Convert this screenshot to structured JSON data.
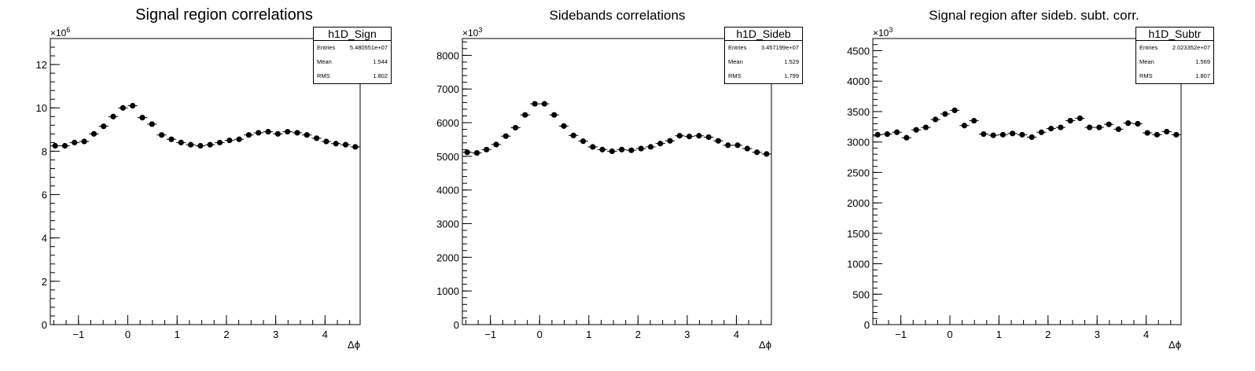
{
  "chart_data": [
    {
      "type": "scatter",
      "title": "Signal region correlations",
      "xlabel": "Δϕ",
      "ylabel": "",
      "xlim": [
        -1.571,
        4.712
      ],
      "ylim": [
        0,
        13.2
      ],
      "y_multiplier_label": "×10",
      "y_multiplier_exp": "6",
      "xticks": [
        "-1",
        "0",
        "1",
        "2",
        "3",
        "4"
      ],
      "yticks": [
        "0",
        "2",
        "4",
        "6",
        "8",
        "10",
        "12"
      ],
      "grid": false,
      "legend": "none",
      "stats": {
        "name": "h1D_Sign",
        "rows": [
          {
            "label": "Entries",
            "value": "5.480551e+07"
          },
          {
            "label": "Mean",
            "value": "1.544"
          },
          {
            "label": "RMS",
            "value": "1.802"
          }
        ]
      },
      "series": [
        {
          "x": [
            -1.473,
            -1.276,
            -1.08,
            -0.884,
            -0.687,
            -0.491,
            -0.295,
            -0.098,
            0.098,
            0.295,
            0.491,
            0.687,
            0.884,
            1.08,
            1.276,
            1.473,
            1.669,
            1.865,
            2.062,
            2.258,
            2.454,
            2.651,
            2.847,
            3.043,
            3.24,
            3.436,
            3.632,
            3.829,
            4.025,
            4.221,
            4.418,
            4.614
          ],
          "y": [
            8.25,
            8.25,
            8.4,
            8.45,
            8.8,
            9.15,
            9.6,
            10.0,
            10.1,
            9.55,
            9.25,
            8.75,
            8.55,
            8.4,
            8.3,
            8.25,
            8.3,
            8.4,
            8.5,
            8.55,
            8.75,
            8.85,
            8.9,
            8.8,
            8.9,
            8.85,
            8.75,
            8.6,
            8.45,
            8.35,
            8.3,
            8.2
          ],
          "yerr": [
            0.003,
            0.003,
            0.003,
            0.003,
            0.003,
            0.003,
            0.003,
            0.003,
            0.003,
            0.003,
            0.003,
            0.003,
            0.003,
            0.003,
            0.003,
            0.003,
            0.003,
            0.003,
            0.003,
            0.003,
            0.003,
            0.003,
            0.003,
            0.003,
            0.003,
            0.003,
            0.003,
            0.003,
            0.003,
            0.003,
            0.003,
            0.003
          ]
        }
      ]
    },
    {
      "type": "scatter",
      "title": "Sidebands correlations",
      "xlabel": "Δϕ",
      "ylabel": "",
      "xlim": [
        -1.571,
        4.712
      ],
      "ylim": [
        0,
        8500
      ],
      "y_multiplier_label": "×10",
      "y_multiplier_exp": "3",
      "xticks": [
        "-1",
        "0",
        "1",
        "2",
        "3",
        "4"
      ],
      "yticks": [
        "0",
        "1000",
        "2000",
        "3000",
        "4000",
        "5000",
        "6000",
        "7000",
        "8000"
      ],
      "grid": false,
      "legend": "none",
      "stats": {
        "name": "h1D_Sideb",
        "rows": [
          {
            "label": "Entries",
            "value": "3.457199e+07"
          },
          {
            "label": "Mean",
            "value": "1.529"
          },
          {
            "label": "RMS",
            "value": "1.799"
          }
        ]
      },
      "series": [
        {
          "x": [
            -1.473,
            -1.276,
            -1.08,
            -0.884,
            -0.687,
            -0.491,
            -0.295,
            -0.098,
            0.098,
            0.295,
            0.491,
            0.687,
            0.884,
            1.08,
            1.276,
            1.473,
            1.669,
            1.865,
            2.062,
            2.258,
            2.454,
            2.651,
            2.847,
            3.043,
            3.24,
            3.436,
            3.632,
            3.829,
            4.025,
            4.221,
            4.418,
            4.614
          ],
          "y": [
            5120,
            5100,
            5200,
            5350,
            5600,
            5850,
            6230,
            6560,
            6560,
            6230,
            5900,
            5620,
            5450,
            5280,
            5200,
            5150,
            5200,
            5180,
            5230,
            5280,
            5380,
            5460,
            5610,
            5590,
            5610,
            5570,
            5460,
            5330,
            5330,
            5230,
            5120,
            5070
          ],
          "yerr": [
            2,
            2,
            2,
            2,
            2,
            2,
            2,
            2,
            2,
            2,
            2,
            2,
            2,
            2,
            2,
            2,
            2,
            2,
            2,
            2,
            2,
            2,
            2,
            2,
            2,
            2,
            2,
            2,
            2,
            2,
            2,
            2
          ]
        }
      ]
    },
    {
      "type": "scatter",
      "title": "Signal region after sideb. subt. corr.",
      "xlabel": "Δϕ",
      "ylabel": "",
      "xlim": [
        -1.571,
        4.712
      ],
      "ylim": [
        0,
        4700
      ],
      "y_multiplier_label": "×10",
      "y_multiplier_exp": "3",
      "xticks": [
        "-1",
        "0",
        "1",
        "2",
        "3",
        "4"
      ],
      "yticks": [
        "0",
        "500",
        "1000",
        "1500",
        "2000",
        "2500",
        "3000",
        "3500",
        "4000",
        "4500"
      ],
      "grid": false,
      "legend": "none",
      "stats": {
        "name": "h1D_Subtr",
        "rows": [
          {
            "label": "Entries",
            "value": "2.023352e+07"
          },
          {
            "label": "Mean",
            "value": "1.569"
          },
          {
            "label": "RMS",
            "value": "1.807"
          }
        ]
      },
      "series": [
        {
          "x": [
            -1.473,
            -1.276,
            -1.08,
            -0.884,
            -0.687,
            -0.491,
            -0.295,
            -0.098,
            0.098,
            0.295,
            0.491,
            0.687,
            0.884,
            1.08,
            1.276,
            1.473,
            1.669,
            1.865,
            2.062,
            2.258,
            2.454,
            2.651,
            2.847,
            3.043,
            3.24,
            3.436,
            3.632,
            3.829,
            4.025,
            4.221,
            4.418,
            4.614
          ],
          "y": [
            3120,
            3130,
            3160,
            3070,
            3200,
            3240,
            3370,
            3460,
            3520,
            3270,
            3350,
            3130,
            3110,
            3120,
            3140,
            3120,
            3080,
            3160,
            3220,
            3240,
            3350,
            3390,
            3240,
            3240,
            3290,
            3210,
            3310,
            3300,
            3150,
            3120,
            3170,
            3120
          ],
          "yerr": [
            45,
            45,
            45,
            45,
            45,
            45,
            45,
            45,
            45,
            45,
            45,
            45,
            45,
            45,
            45,
            45,
            45,
            45,
            45,
            45,
            45,
            45,
            45,
            45,
            45,
            45,
            45,
            45,
            45,
            45,
            45,
            45
          ]
        }
      ]
    }
  ]
}
